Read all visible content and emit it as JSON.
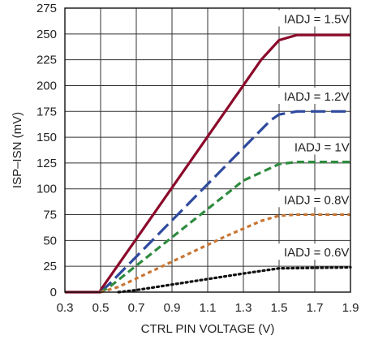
{
  "chart_data": {
    "type": "line",
    "title": "",
    "xlabel": "CTRL PIN VOLTAGE (V)",
    "ylabel": "ISP–ISN (mV)",
    "xlim": [
      0.3,
      1.9
    ],
    "ylim": [
      0,
      275
    ],
    "xticks": [
      "0.3",
      "0.5",
      "0.7",
      "0.9",
      "1.1",
      "1.3",
      "1.5",
      "1.7",
      "1.9"
    ],
    "yticks": [
      "0",
      "25",
      "50",
      "75",
      "100",
      "125",
      "150",
      "175",
      "200",
      "225",
      "250",
      "275"
    ],
    "grid": true,
    "series": [
      {
        "name": "IADJ = 1.5V",
        "color": "#8b0a2a",
        "dash": "solid",
        "points": [
          [
            0.3,
            0
          ],
          [
            0.5,
            0
          ],
          [
            0.5,
            2
          ],
          [
            1.4,
            225
          ],
          [
            1.5,
            244
          ],
          [
            1.6,
            249
          ],
          [
            1.9,
            249
          ]
        ]
      },
      {
        "name": "IADJ = 1.2V",
        "color": "#2e4a9e",
        "dash": "longdash",
        "points": [
          [
            0.5,
            0
          ],
          [
            0.55,
            8
          ],
          [
            1.45,
            166
          ],
          [
            1.5,
            172
          ],
          [
            1.6,
            175
          ],
          [
            1.9,
            175
          ]
        ]
      },
      {
        "name": "IADJ = 1V",
        "color": "#2e8b3e",
        "dash": "dash",
        "points": [
          [
            0.5,
            0
          ],
          [
            0.55,
            5
          ],
          [
            1.3,
            108
          ],
          [
            1.5,
            124
          ],
          [
            1.6,
            126
          ],
          [
            1.9,
            126
          ]
        ]
      },
      {
        "name": "IADJ = 0.8V",
        "color": "#c87533",
        "dash": "shortdash",
        "points": [
          [
            0.5,
            0
          ],
          [
            0.6,
            5
          ],
          [
            1.2,
            54
          ],
          [
            1.4,
            69
          ],
          [
            1.5,
            74
          ],
          [
            1.6,
            75
          ],
          [
            1.9,
            75
          ]
        ]
      },
      {
        "name": "IADJ = 0.6V",
        "color": "#111111",
        "dash": "dot",
        "points": [
          [
            0.6,
            0
          ],
          [
            0.7,
            2
          ],
          [
            1.0,
            10
          ],
          [
            1.3,
            18
          ],
          [
            1.5,
            23
          ],
          [
            1.9,
            24
          ]
        ]
      }
    ],
    "annotations": [
      {
        "text": "IADJ = 1.5V",
        "x": 1.71,
        "y": 262
      },
      {
        "text": "IADJ = 1.2V",
        "x": 1.71,
        "y": 187
      },
      {
        "text": "IADJ = 1V",
        "x": 1.74,
        "y": 138
      },
      {
        "text": "IADJ = 0.8V",
        "x": 1.71,
        "y": 87
      },
      {
        "text": "IADJ = 0.6V",
        "x": 1.71,
        "y": 36
      }
    ]
  }
}
